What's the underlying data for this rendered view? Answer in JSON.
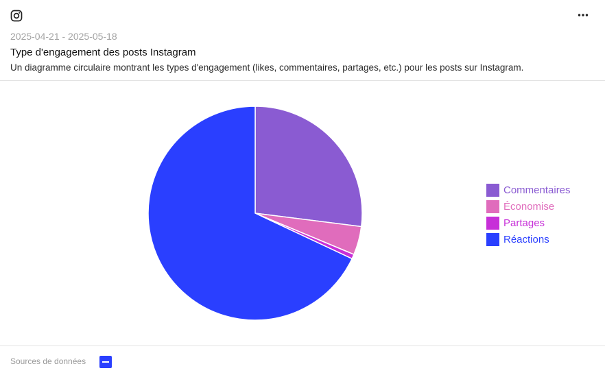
{
  "header": {
    "platform_icon": "instagram-icon",
    "menu_icon": "more-horizontal-icon",
    "date_range": "2025-04-21 - 2025-05-18",
    "title": "Type d'engagement des posts Instagram",
    "subtitle": "Un diagramme circulaire montrant les types d'engagement (likes, commentaires, partages, etc.) pour les posts sur Instagram."
  },
  "chart_data": {
    "type": "pie",
    "legend_position": "right",
    "slices": [
      {
        "label": "Commentaires",
        "value": 27.0,
        "color": "#8a5bd2"
      },
      {
        "label": "Économise",
        "value": 4.3,
        "color": "#e06cbc"
      },
      {
        "label": "Partages",
        "value": 0.7,
        "color": "#c72fd8"
      },
      {
        "label": "Réactions",
        "value": 68.0,
        "color": "#2a3fff"
      }
    ]
  },
  "footer": {
    "sources_label": "Sources de données",
    "source_icon": "data-source-icon",
    "source_color": "#2a3fff"
  }
}
